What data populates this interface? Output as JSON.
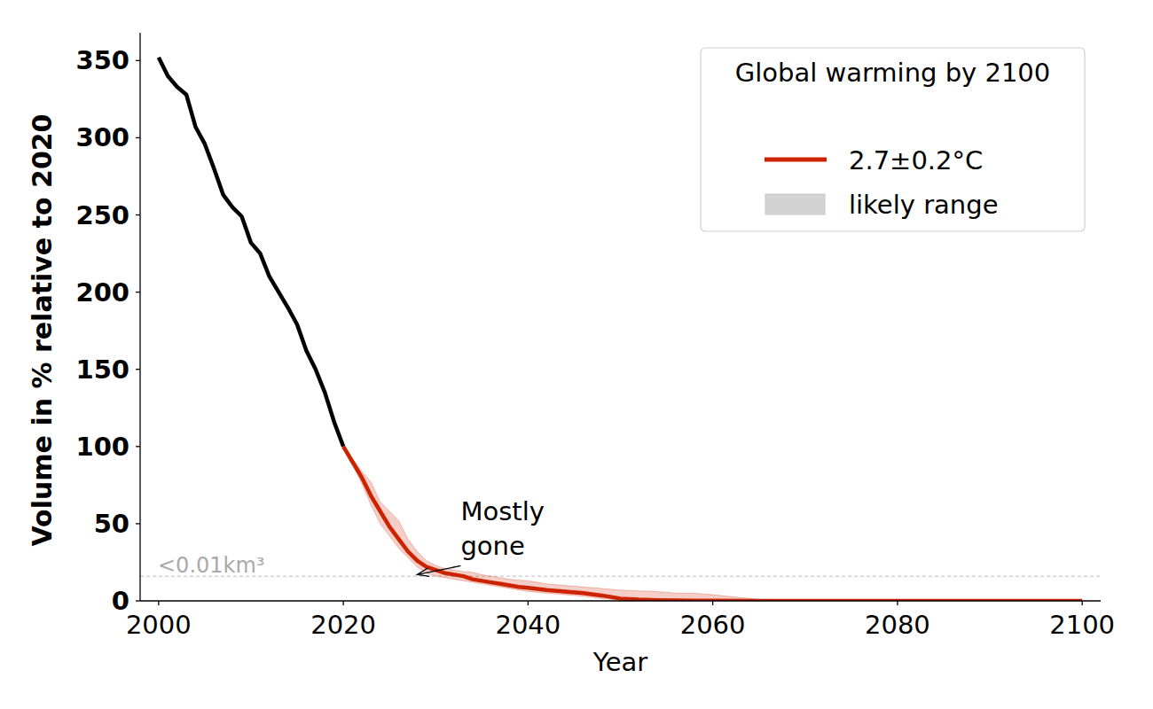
{
  "chart_data": {
    "type": "line",
    "x_label": "Year",
    "y_label": "Volume in % relative to 2020",
    "legend_title": "Global warming by 2100",
    "legend": "upper right",
    "grid": false,
    "xlim": [
      1998,
      2102
    ],
    "ylim": [
      0,
      368
    ],
    "xticks": [
      2000,
      2020,
      2040,
      2060,
      2080,
      2100
    ],
    "yticks": [
      0,
      50,
      100,
      150,
      200,
      250,
      300,
      350
    ],
    "threshold": {
      "value": 16,
      "label": "<0.01km³"
    },
    "annotations": [
      {
        "text": "Mostly\ngone",
        "x": 2028,
        "y": 17
      }
    ],
    "series": [
      {
        "type": "line",
        "color": "#000000",
        "x": [
          2000,
          2001,
          2002,
          2003,
          2004,
          2005,
          2006,
          2007,
          2008,
          2009,
          2010,
          2011,
          2012,
          2013,
          2014,
          2015,
          2016,
          2017,
          2018,
          2019,
          2020
        ],
        "values": [
          352,
          340,
          333,
          328,
          307,
          296,
          280,
          263,
          255,
          249,
          232,
          225,
          210,
          200,
          190,
          179,
          162,
          150,
          135,
          116,
          100
        ]
      },
      {
        "type": "line",
        "name": "2.7±0.2°C",
        "color": "#cc2200",
        "x": [
          2020,
          2021,
          2022,
          2023,
          2024,
          2025,
          2026,
          2027,
          2028,
          2029,
          2030,
          2031,
          2032,
          2033,
          2034,
          2035,
          2036,
          2037,
          2038,
          2039,
          2040,
          2042,
          2044,
          2046,
          2048,
          2050,
          2052,
          2054,
          2056,
          2058,
          2060,
          2065,
          2070,
          2080,
          2090,
          2100
        ],
        "values": [
          100,
          90,
          80,
          68,
          58,
          48,
          40,
          32,
          26,
          22,
          20,
          18,
          17,
          16,
          14,
          13,
          12,
          11,
          10,
          9,
          8.5,
          7,
          6,
          5,
          3.5,
          1.5,
          0.8,
          0.5,
          0.3,
          0.2,
          0.1,
          0,
          0,
          0,
          0,
          0
        ]
      },
      {
        "type": "band",
        "name": "likely range",
        "color": "#d3d3d3",
        "x": [
          2020,
          2021,
          2022,
          2023,
          2024,
          2025,
          2026,
          2027,
          2028,
          2029,
          2030,
          2031,
          2032,
          2033,
          2034,
          2035,
          2036,
          2037,
          2038,
          2039,
          2040,
          2042,
          2044,
          2046,
          2048,
          2050,
          2052,
          2054,
          2056,
          2058,
          2060,
          2065,
          2070,
          2080,
          2090,
          2100
        ],
        "lower": [
          100,
          88,
          76,
          62,
          50,
          42,
          34,
          28,
          22,
          18,
          16,
          15,
          14,
          13,
          12,
          11,
          10,
          9,
          8,
          7,
          6,
          5,
          4,
          3,
          1.5,
          0.5,
          0.2,
          0.1,
          0,
          0,
          0,
          0,
          0,
          0,
          0,
          0
        ],
        "upper": [
          100,
          92,
          84,
          77,
          64,
          58,
          52,
          40,
          32,
          26,
          23,
          21,
          20,
          19,
          18.5,
          17,
          16,
          15,
          14,
          13.5,
          13,
          11,
          10,
          9,
          8,
          7,
          6.5,
          6,
          5,
          5,
          4,
          1,
          0.3,
          0,
          0,
          0
        ]
      }
    ]
  }
}
